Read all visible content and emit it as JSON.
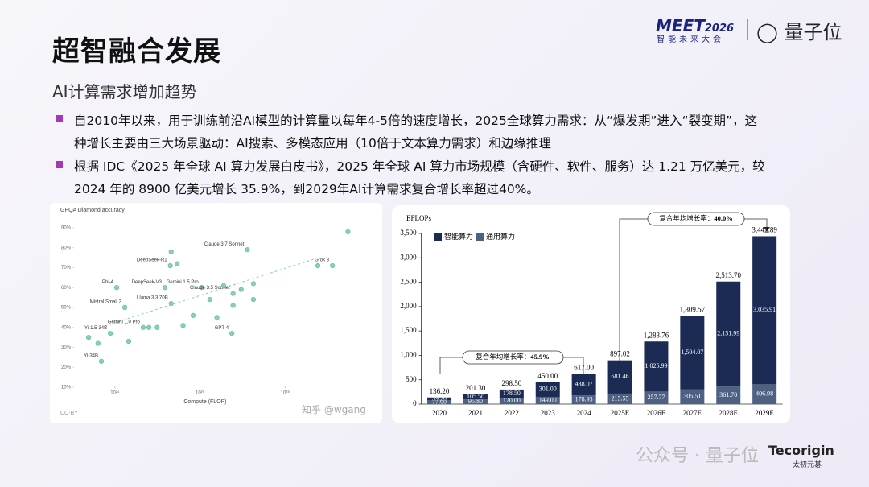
{
  "header": {
    "title": "超智融合发展",
    "subtitle": "AI计算需求增加趋势",
    "event_logo": "MEET",
    "event_year": "2026",
    "event_name": "智能未来大会",
    "brand": "量子位"
  },
  "bullets": [
    [
      "自2010年以来，用于训练前沿AI模型的计算量以每年4-5倍的速度增长，2025全球算力需求：从“爆发期”进入“裂变期”，这",
      "种增长主要由三大场景驱动：AI搜索、多模态应用（10倍于文本算力需求）和边缘推理"
    ],
    [
      "根据 IDC《2025 年全球 AI 算力发展白皮书》，2025 年全球 AI 算力市场规模（含硬件、软件、服务）达 1.21 万亿美元，较",
      "2024 年的 8900 亿美元增长 35.9%，到2029年AI计算需求复合增长率超过40%。"
    ]
  ],
  "chart_data": [
    {
      "type": "scatter",
      "title": "GPQA Diamond accuracy",
      "x_label": "Compute (FLOP)",
      "note": "CC-BY",
      "log_x": true,
      "color": "#86cfbb",
      "xlim": [
        1e+23,
        1e+30
      ],
      "xticks": [
        {
          "value": 1e+24,
          "label": "10²⁴"
        },
        {
          "value": 1e+26,
          "label": "10²⁶"
        },
        {
          "value": 1e+28,
          "label": "10²⁸"
        }
      ],
      "ylim": [
        5,
        95
      ],
      "yticks": [
        {
          "value": 10,
          "label": "10%"
        },
        {
          "value": 20,
          "label": "20%"
        },
        {
          "value": 30,
          "label": "30%"
        },
        {
          "value": 40,
          "label": "40%"
        },
        {
          "value": 50,
          "label": "50%"
        },
        {
          "value": 60,
          "label": "60%"
        },
        {
          "value": 70,
          "label": "70%"
        },
        {
          "value": 80,
          "label": "80%"
        },
        {
          "value": 90,
          "label": "90%"
        }
      ],
      "x": [
        1.3e+27,
        1.3e+29,
        3e+29,
        2e+25,
        1.1e+24,
        1.5e+25,
        1.1e+26,
        6e+26,
        2.1e+25,
        1.7e+24,
        4.6e+24,
        7.8e+23,
        5.6e+26,
        4.8e+23,
        2.4e+23,
        4e+23,
        2.1e+24,
        6.3e+24,
        2.9e+25,
        2.1e+25,
        4e+25,
        6.9e+25,
        1.7e+26,
        3.6e+26,
        6e+26,
        9.3e+26,
        1.8e+27,
        1.8e+27,
        5.9e+28,
        2.5e+26,
        9.8e+24
      ],
      "y": [
        79,
        71,
        88,
        71,
        60,
        60,
        60,
        57,
        52,
        50,
        40,
        37,
        37,
        23,
        35,
        32,
        33,
        40,
        72,
        78,
        41,
        46,
        54,
        61,
        51,
        59,
        54,
        62,
        71,
        45,
        40
      ],
      "point_labels": [
        "Claude 3.7 Sonnet",
        "Grok 3",
        null,
        "DeepSeek-R1",
        "Phi-4",
        "DeepSeek-V3",
        "Gemini 1.5 Pro",
        "Claude 3.5 Sonnet",
        "Llama 3.3 70B",
        "Mistral Small 3",
        "Gemini 1.0 Pro",
        "Yi-1.5-34B",
        "GPT-4",
        "Yi-34B",
        null,
        null,
        null,
        null,
        null,
        null,
        null,
        null,
        null,
        null,
        null,
        null,
        null,
        null,
        null,
        null,
        null
      ]
    },
    {
      "type": "stacked_bar",
      "y_label": "EFLOPs",
      "categories": [
        "2020",
        "2021",
        "2022",
        "2023",
        "2024",
        "2025E",
        "2026E",
        "2027E",
        "2028E",
        "2029E"
      ],
      "ylim": [
        0,
        3500
      ],
      "yticks": [
        0,
        500,
        {
          "value": 1000,
          "label": "1,000"
        },
        {
          "value": 1500,
          "label": "1,500"
        },
        {
          "value": 2000,
          "label": "2,000"
        },
        {
          "value": 2500,
          "label": "2,500"
        },
        {
          "value": 3000,
          "label": "3,000"
        },
        {
          "value": 3500,
          "label": "3,500"
        }
      ],
      "series": [
        {
          "name": "智能算力",
          "color": "#1c2b54",
          "values": [
            59.2,
            105.5,
            178.5,
            301,
            438.07,
            681.46,
            1025.99,
            1504.07,
            2151.99,
            3035.91
          ],
          "value_labels": [
            "59.20",
            "105.50",
            "178.50",
            "301.00",
            "438.07",
            "681.46",
            "1,025.99",
            "1,504.07",
            "2,151.99",
            "3,035.91"
          ]
        },
        {
          "name": "通用算力",
          "color": "#4d6282",
          "values": [
            77,
            95.8,
            120,
            149,
            178.93,
            215.55,
            257.77,
            305.51,
            361.7,
            406.98
          ],
          "value_labels": [
            "77.00",
            "95.80",
            "120.00",
            "149.00",
            "178.93",
            "215.55",
            "257.77",
            "305.51",
            "361.70",
            "406.98"
          ]
        }
      ],
      "totals": [
        136.2,
        201.3,
        298.5,
        450,
        617,
        897.02,
        1283.76,
        1809.57,
        2513.7,
        3442.89
      ],
      "total_labels": [
        "136.20",
        "201.30",
        "298.50",
        "450.00",
        "617.00",
        "897.02",
        "1,283.76",
        "1,809.57",
        "2,513.70",
        "3,442.89"
      ],
      "annotations": [
        {
          "label": "复合年均增长率：",
          "value": "45.9%"
        },
        {
          "label": "复合年均增长率：",
          "value": "40.0%"
        }
      ]
    }
  ],
  "footer": {
    "watermark_zhihu": "知乎 @wgang",
    "watermark_wechat": "公众号 · 量子位",
    "partner": "Tecorigin",
    "partner_cn": "太初元碁"
  }
}
